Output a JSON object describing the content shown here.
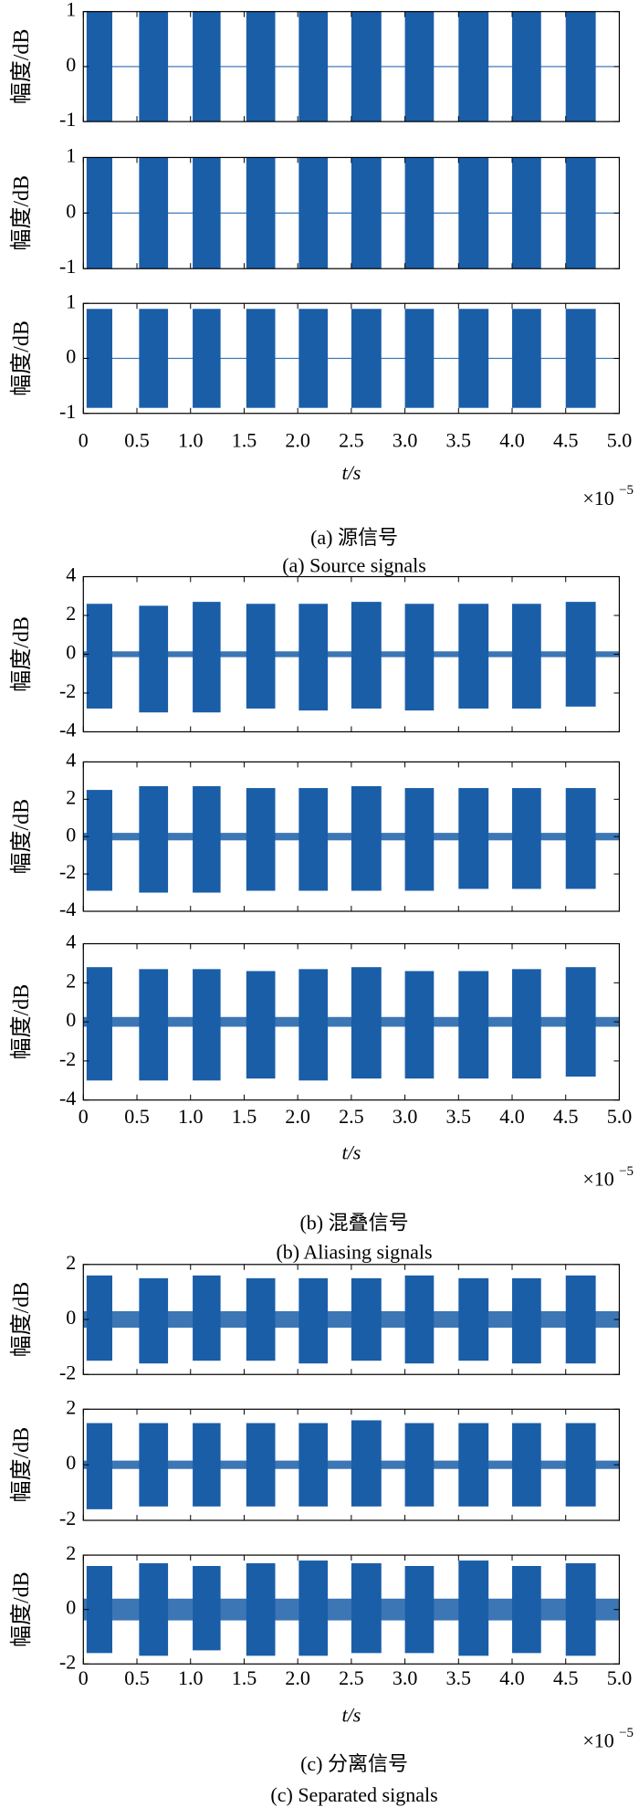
{
  "chart_data": [
    {
      "type": "burst",
      "xlabel": "t/s",
      "x_multiplier": "×10",
      "x_exponent": "−5",
      "caption_cn": "(a) 源信号",
      "caption_en": "(a) Source signals",
      "xlim": [
        0,
        5
      ],
      "xticks": [
        0,
        0.5,
        {
          "value": 1,
          "label": "1.0"
        },
        1.5,
        {
          "value": 2,
          "label": "2.0"
        },
        2.5,
        {
          "value": 3,
          "label": "3.0"
        },
        3.5,
        {
          "value": 4,
          "label": "4.0"
        },
        4.5,
        {
          "value": 5,
          "label": "5.0"
        }
      ],
      "burst_starts": [
        0.03,
        0.52,
        1.02,
        1.52,
        2.01,
        2.5,
        3.0,
        3.5,
        4.0,
        4.5
      ],
      "burst_ends": [
        0.27,
        0.79,
        1.28,
        1.79,
        2.28,
        2.78,
        3.27,
        3.78,
        4.27,
        4.78
      ],
      "color": "#1a5ea8",
      "subplots": [
        {
          "ylabel": "幅度/dB",
          "ylim": [
            -1,
            1
          ],
          "yticks": [
            1,
            0,
            -1
          ],
          "floor": 0.01,
          "upper": [
            1,
            1,
            1,
            1,
            1,
            1,
            1,
            1,
            1,
            1
          ],
          "lower": [
            -1,
            -1,
            -1,
            -1,
            -1,
            -1,
            -1,
            -1,
            -1,
            -1
          ]
        },
        {
          "ylabel": "幅度/dB",
          "ylim": [
            -1,
            1
          ],
          "yticks": [
            1,
            0,
            -1
          ],
          "floor": 0.01,
          "upper": [
            1,
            1,
            1,
            1,
            1,
            1,
            1,
            1,
            1,
            1
          ],
          "lower": [
            -1,
            -1,
            -1,
            -1,
            -1,
            -1,
            -1,
            -1,
            -1,
            -1
          ]
        },
        {
          "ylabel": "幅度/dB",
          "ylim": [
            -1,
            1
          ],
          "yticks": [
            1,
            0,
            -1
          ],
          "floor": 0.01,
          "upper": [
            0.9,
            0.9,
            0.9,
            0.9,
            0.9,
            0.9,
            0.9,
            0.9,
            0.9,
            0.9
          ],
          "lower": [
            -0.9,
            -0.9,
            -0.9,
            -0.9,
            -0.9,
            -0.9,
            -0.9,
            -0.9,
            -0.9,
            -0.9
          ]
        }
      ]
    },
    {
      "type": "burst",
      "xlabel": "t/s",
      "x_multiplier": "×10",
      "x_exponent": "−5",
      "caption_cn": "(b) 混叠信号",
      "caption_en": "(b) Aliasing signals",
      "xlim": [
        0,
        5
      ],
      "xticks": [
        0,
        0.5,
        {
          "value": 1,
          "label": "1.0"
        },
        1.5,
        {
          "value": 2,
          "label": "2.0"
        },
        2.5,
        {
          "value": 3,
          "label": "3.0"
        },
        3.5,
        {
          "value": 4,
          "label": "4.0"
        },
        4.5,
        {
          "value": 5,
          "label": "5.0"
        }
      ],
      "burst_starts": [
        0.03,
        0.52,
        1.02,
        1.52,
        2.01,
        2.5,
        3.0,
        3.5,
        4.0,
        4.5
      ],
      "burst_ends": [
        0.27,
        0.79,
        1.28,
        1.79,
        2.28,
        2.78,
        3.27,
        3.78,
        4.27,
        4.78
      ],
      "color": "#1a5ea8",
      "subplots": [
        {
          "ylabel": "幅度/dB",
          "ylim": [
            -4,
            4
          ],
          "yticks": [
            4,
            2,
            0,
            -2,
            -4
          ],
          "floor": 0.15,
          "upper": [
            2.6,
            2.5,
            2.7,
            2.6,
            2.6,
            2.7,
            2.6,
            2.6,
            2.6,
            2.7
          ],
          "lower": [
            -2.8,
            -3,
            -3,
            -2.8,
            -2.9,
            -2.8,
            -2.9,
            -2.8,
            -2.8,
            -2.7
          ]
        },
        {
          "ylabel": "幅度/dB",
          "ylim": [
            -4,
            4
          ],
          "yticks": [
            4,
            2,
            0,
            -2,
            -4
          ],
          "floor": 0.2,
          "upper": [
            2.5,
            2.7,
            2.7,
            2.6,
            2.6,
            2.7,
            2.6,
            2.6,
            2.6,
            2.6
          ],
          "lower": [
            -2.9,
            -3,
            -3,
            -2.9,
            -2.9,
            -2.9,
            -2.9,
            -2.8,
            -2.8,
            -2.8
          ]
        },
        {
          "ylabel": "幅度/dB",
          "ylim": [
            -4,
            4
          ],
          "yticks": [
            4,
            2,
            0,
            -2,
            -4
          ],
          "floor": 0.25,
          "upper": [
            2.8,
            2.7,
            2.7,
            2.6,
            2.7,
            2.8,
            2.6,
            2.6,
            2.7,
            2.8
          ],
          "lower": [
            -3,
            -3,
            -3,
            -2.9,
            -3,
            -2.9,
            -2.9,
            -2.9,
            -2.9,
            -2.8
          ]
        }
      ]
    },
    {
      "type": "burst",
      "xlabel": "t/s",
      "x_multiplier": "×10",
      "x_exponent": "−5",
      "caption_cn": "(c) 分离信号",
      "caption_en": "(c) Separated signals",
      "xlim": [
        0,
        5
      ],
      "xticks": [
        0,
        0.5,
        {
          "value": 1,
          "label": "1.0"
        },
        1.5,
        {
          "value": 2,
          "label": "2.0"
        },
        2.5,
        {
          "value": 3,
          "label": "3.0"
        },
        3.5,
        {
          "value": 4,
          "label": "4.0"
        },
        4.5,
        {
          "value": 5,
          "label": "5.0"
        }
      ],
      "burst_starts": [
        0.03,
        0.52,
        1.02,
        1.52,
        2.01,
        2.5,
        3.0,
        3.5,
        4.0,
        4.5
      ],
      "burst_ends": [
        0.27,
        0.79,
        1.28,
        1.79,
        2.28,
        2.78,
        3.27,
        3.78,
        4.27,
        4.78
      ],
      "color": "#1a5ea8",
      "subplots": [
        {
          "ylabel": "幅度/dB",
          "ylim": [
            -2,
            2
          ],
          "yticks": [
            2,
            0,
            -2
          ],
          "floor": 0.3,
          "upper": [
            1.6,
            1.5,
            1.6,
            1.5,
            1.5,
            1.5,
            1.6,
            1.5,
            1.5,
            1.6
          ],
          "lower": [
            -1.5,
            -1.6,
            -1.5,
            -1.5,
            -1.6,
            -1.5,
            -1.6,
            -1.5,
            -1.6,
            -1.6
          ]
        },
        {
          "ylabel": "幅度/dB",
          "ylim": [
            -2,
            2
          ],
          "yticks": [
            2,
            0,
            -2
          ],
          "floor": 0.15,
          "upper": [
            1.5,
            1.5,
            1.5,
            1.5,
            1.5,
            1.6,
            1.5,
            1.5,
            1.5,
            1.5
          ],
          "lower": [
            -1.6,
            -1.5,
            -1.5,
            -1.5,
            -1.5,
            -1.5,
            -1.5,
            -1.5,
            -1.5,
            -1.5
          ]
        },
        {
          "ylabel": "幅度/dB",
          "ylim": [
            -2,
            2
          ],
          "yticks": [
            2,
            0,
            -2
          ],
          "floor": 0.4,
          "upper": [
            1.6,
            1.7,
            1.6,
            1.7,
            1.8,
            1.7,
            1.6,
            1.8,
            1.6,
            1.7
          ],
          "lower": [
            -1.6,
            -1.7,
            -1.5,
            -1.7,
            -1.7,
            -1.6,
            -1.6,
            -1.7,
            -1.6,
            -1.7
          ]
        }
      ]
    }
  ]
}
